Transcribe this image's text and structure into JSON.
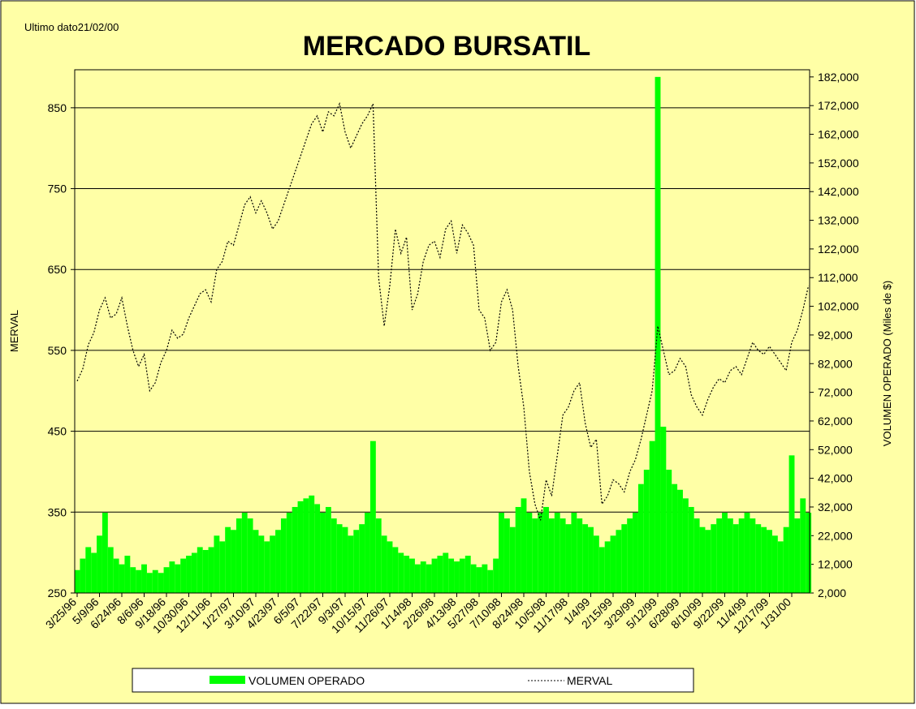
{
  "chart_data": {
    "type": "combo",
    "title": "MERCADO BURSATIL",
    "note": "Ultimo dato21/02/00",
    "y_label": "MERVAL",
    "y2_label": "VOLUMEN OPERADO (Miles de $)",
    "legend": "bottom",
    "grid": true,
    "categories": [
      "3/25/96",
      null,
      null,
      null,
      "5/9/96",
      null,
      null,
      null,
      "6/24/96",
      null,
      null,
      null,
      "8/6/96",
      null,
      null,
      null,
      "9/18/96",
      null,
      null,
      null,
      "10/30/96",
      null,
      null,
      null,
      "12/11/96",
      null,
      null,
      null,
      "1/27/97",
      null,
      null,
      null,
      "3/10/97",
      null,
      null,
      null,
      "4/23/97",
      null,
      null,
      null,
      "6/5/97",
      null,
      null,
      null,
      "7/22/97",
      null,
      null,
      null,
      "9/3/97",
      null,
      null,
      null,
      "10/15/97",
      null,
      null,
      null,
      "11/26/97",
      null,
      null,
      null,
      "1/14/98",
      null,
      null,
      null,
      "2/26/98",
      null,
      null,
      null,
      "4/13/98",
      null,
      null,
      null,
      "5/27/98",
      null,
      null,
      null,
      "7/10/98",
      null,
      null,
      null,
      "8/24/98",
      null,
      null,
      null,
      "10/5/98",
      null,
      null,
      null,
      "11/17/98",
      null,
      null,
      null,
      "1/4/99",
      null,
      null,
      null,
      "2/15/99",
      null,
      null,
      null,
      "3/29/99",
      null,
      null,
      null,
      "5/12/99",
      null,
      null,
      null,
      "6/28/99",
      null,
      null,
      null,
      "8/10/99",
      null,
      null,
      null,
      "9/22/99",
      null,
      null,
      null,
      "11/4/99",
      null,
      null,
      null,
      "12/17/99",
      null,
      null,
      null,
      "1/31/00",
      null,
      null,
      null
    ],
    "series": [
      {
        "name": "VOLUMEN OPERADO",
        "type": "bar",
        "axis": "y2",
        "color": "#00ff00",
        "values": [
          10000,
          14000,
          18000,
          16000,
          22000,
          30000,
          18000,
          14000,
          12000,
          15000,
          11000,
          10000,
          12000,
          9000,
          10000,
          9000,
          11000,
          13000,
          12000,
          14000,
          15000,
          16000,
          18000,
          17000,
          18000,
          22000,
          20000,
          25000,
          24000,
          28000,
          30000,
          28000,
          24000,
          22000,
          20000,
          22000,
          24000,
          28000,
          30000,
          32000,
          34000,
          35000,
          36000,
          33000,
          30000,
          32000,
          28000,
          26000,
          25000,
          22000,
          24000,
          26000,
          30000,
          55000,
          28000,
          22000,
          20000,
          18000,
          16000,
          15000,
          14000,
          12000,
          13000,
          12000,
          14000,
          15000,
          16000,
          14000,
          13000,
          14000,
          15000,
          12000,
          11000,
          12000,
          10000,
          14000,
          30000,
          28000,
          25000,
          32000,
          35000,
          30000,
          28000,
          30000,
          32000,
          28000,
          30000,
          28000,
          26000,
          30000,
          28000,
          26000,
          25000,
          22000,
          18000,
          20000,
          22000,
          24000,
          26000,
          28000,
          30000,
          40000,
          45000,
          55000,
          182000,
          60000,
          45000,
          40000,
          38000,
          35000,
          32000,
          28000,
          25000,
          24000,
          26000,
          28000,
          30000,
          28000,
          26000,
          28000,
          30000,
          28000,
          26000,
          25000,
          24000,
          22000,
          20000,
          25000,
          50000,
          28000,
          35000,
          30000
        ]
      },
      {
        "name": "MERVAL",
        "type": "line",
        "color": "#000000",
        "dashed": true,
        "values": [
          512,
          527,
          557,
          572,
          600,
          615,
          590,
          595,
          615,
          580,
          550,
          530,
          545,
          500,
          510,
          535,
          550,
          575,
          565,
          570,
          590,
          605,
          620,
          625,
          610,
          650,
          660,
          685,
          680,
          705,
          730,
          740,
          720,
          735,
          720,
          700,
          710,
          730,
          750,
          770,
          790,
          810,
          830,
          840,
          820,
          845,
          840,
          855,
          820,
          800,
          815,
          830,
          840,
          855,
          640,
          580,
          630,
          700,
          670,
          690,
          600,
          620,
          660,
          680,
          685,
          665,
          700,
          710,
          670,
          705,
          695,
          680,
          600,
          590,
          550,
          560,
          610,
          625,
          600,
          530,
          480,
          400,
          360,
          340,
          390,
          370,
          420,
          470,
          480,
          500,
          510,
          460,
          430,
          440,
          360,
          370,
          390,
          385,
          375,
          400,
          415,
          440,
          470,
          500,
          580,
          550,
          520,
          525,
          540,
          530,
          495,
          480,
          470,
          490,
          505,
          515,
          510,
          525,
          530,
          520,
          540,
          560,
          550,
          545,
          555,
          545,
          535,
          525,
          560,
          575,
          600,
          630
        ]
      }
    ],
    "ylim": [
      250,
      897
    ],
    "yticks": [
      250,
      350,
      450,
      550,
      650,
      750,
      850
    ],
    "y2lim": [
      2000,
      184500
    ],
    "y2ticks": [
      {
        "value": 2000,
        "label": "2,000"
      },
      {
        "value": 12000,
        "label": "12,000"
      },
      {
        "value": 22000,
        "label": "22,000"
      },
      {
        "value": 32000,
        "label": "32,000"
      },
      {
        "value": 42000,
        "label": "42,000"
      },
      {
        "value": 52000,
        "label": "52,000"
      },
      {
        "value": 62000,
        "label": "62,000"
      },
      {
        "value": 72000,
        "label": "72,000"
      },
      {
        "value": 82000,
        "label": "82,000"
      },
      {
        "value": 92000,
        "label": "92,000"
      },
      {
        "value": 102000,
        "label": "102,000"
      },
      {
        "value": 112000,
        "label": "112,000"
      },
      {
        "value": 122000,
        "label": "122,000"
      },
      {
        "value": 132000,
        "label": "132,000"
      },
      {
        "value": 142000,
        "label": "142,000"
      },
      {
        "value": 152000,
        "label": "152,000"
      },
      {
        "value": 162000,
        "label": "162,000"
      },
      {
        "value": 172000,
        "label": "172,000"
      },
      {
        "value": 182000,
        "label": "182,000"
      }
    ]
  }
}
